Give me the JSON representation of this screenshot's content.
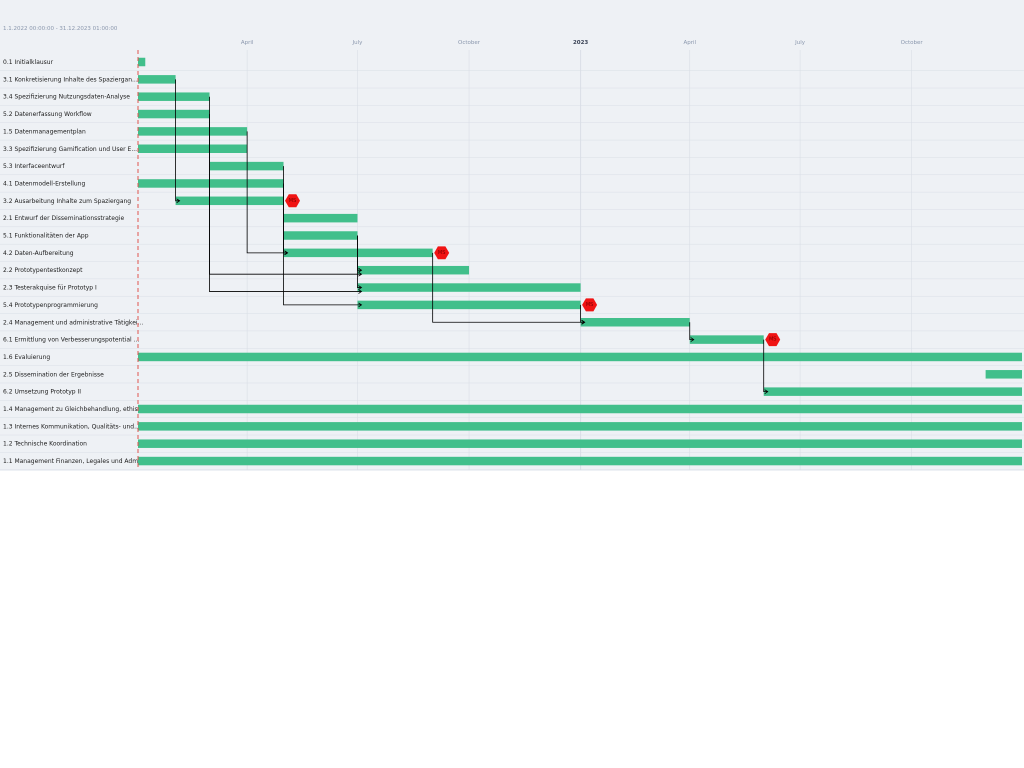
{
  "date_range": "1.1.2022 00:00:00 - 31.12.2023 01:00:00",
  "colors": {
    "bar": "#41bf8b",
    "milestone": "#f01414",
    "today_line": "#e0554f",
    "grid": "#d9dee6",
    "connector": "#000000",
    "panel_bg": "#eef1f5"
  },
  "chart_data": {
    "type": "gantt",
    "x_range": [
      "2022-01-01",
      "2023-12-31"
    ],
    "ticks": [
      {
        "date": "2022-04-01",
        "label": "April",
        "major": false
      },
      {
        "date": "2022-07-01",
        "label": "July",
        "major": false
      },
      {
        "date": "2022-10-01",
        "label": "October",
        "major": false
      },
      {
        "date": "2023-01-01",
        "label": "2023",
        "major": true
      },
      {
        "date": "2023-04-01",
        "label": "April",
        "major": false
      },
      {
        "date": "2023-07-01",
        "label": "July",
        "major": false
      },
      {
        "date": "2023-10-01",
        "label": "October",
        "major": false
      }
    ],
    "today": "2022-01-01",
    "tasks": [
      {
        "label": "0.1 Initialklausur",
        "start": "2022-01-01",
        "end": "2022-01-07",
        "milestone": false
      },
      {
        "label": "3.1 Konkretisierung Inhalte des Spaziergan...",
        "start": "2022-01-01",
        "end": "2022-02-01",
        "milestone": false
      },
      {
        "label": "3.4 Spezifizierung Nutzungsdaten-Analyse",
        "start": "2022-01-01",
        "end": "2022-03-01",
        "milestone": false
      },
      {
        "label": "5.2 Datenerfassung Workflow",
        "start": "2022-01-01",
        "end": "2022-03-01",
        "milestone": false
      },
      {
        "label": "1.5 Datenmanagementplan",
        "start": "2022-01-01",
        "end": "2022-04-01",
        "milestone": false
      },
      {
        "label": "3.3 Spezifizierung Gamification und User E...",
        "start": "2022-01-01",
        "end": "2022-04-01",
        "milestone": false
      },
      {
        "label": "5.3 Interfaceentwurf",
        "start": "2022-03-01",
        "end": "2022-05-01",
        "milestone": false
      },
      {
        "label": "4.1 Datenmodell-Erstellung",
        "start": "2022-01-01",
        "end": "2022-05-01",
        "milestone": false
      },
      {
        "label": "3.2 Ausarbeitung Inhalte zum Spaziergang",
        "start": "2022-02-01",
        "end": "2022-05-01",
        "milestone": true,
        "ms_label": "MS"
      },
      {
        "label": "2.1 Entwurf der Disseminationsstrategie",
        "start": "2022-05-01",
        "end": "2022-07-01",
        "milestone": false
      },
      {
        "label": "5.1 Funktionalitäten der App",
        "start": "2022-05-01",
        "end": "2022-07-01",
        "milestone": false
      },
      {
        "label": "4.2 Daten-Aufbereitung",
        "start": "2022-05-01",
        "end": "2022-09-01",
        "milestone": true,
        "ms_label": "MS"
      },
      {
        "label": "2.2 Prototypentestkonzept",
        "start": "2022-07-01",
        "end": "2022-10-01",
        "milestone": false
      },
      {
        "label": "2.3 Testerakquise für Prototyp I",
        "start": "2022-07-01",
        "end": "2023-01-01",
        "milestone": false
      },
      {
        "label": "5.4 Prototypenprogrammierung",
        "start": "2022-07-01",
        "end": "2023-01-01",
        "milestone": true,
        "ms_label": "MS"
      },
      {
        "label": "2.4 Management und administrative Tätigkei...",
        "start": "2023-01-01",
        "end": "2023-04-01",
        "milestone": false
      },
      {
        "label": "6.1 Ermittlung von Verbesserungspotential ...",
        "start": "2023-04-01",
        "end": "2023-06-01",
        "milestone": true,
        "ms_label": "MS"
      },
      {
        "label": "1.6 Evaluierung",
        "start": "2022-01-01",
        "end": "2023-12-31",
        "milestone": false
      },
      {
        "label": "2.5 Dissemination der Ergebnisse",
        "start": "2023-12-01",
        "end": "2023-12-31",
        "milestone": false
      },
      {
        "label": "6.2 Umsetzung Prototyp II",
        "start": "2023-06-01",
        "end": "2023-12-31",
        "milestone": false
      },
      {
        "label": "1.4 Management zu Gleichbehandlung, ethisc...",
        "start": "2022-01-01",
        "end": "2023-12-31",
        "milestone": false
      },
      {
        "label": "1.3 Internes Kommunikation, Qualitäts- und...",
        "start": "2022-01-01",
        "end": "2023-12-31",
        "milestone": false
      },
      {
        "label": "1.2 Technische Koordination",
        "start": "2022-01-01",
        "end": "2023-12-31",
        "milestone": false
      },
      {
        "label": "1.1 Management Finanzen, Legales und Admin...",
        "start": "2022-01-01",
        "end": "2023-12-31",
        "milestone": false
      }
    ],
    "dependencies": [
      {
        "from": 1,
        "to": 8,
        "drop_to": "row"
      },
      {
        "from": 2,
        "to": 12,
        "drop_to": "below"
      },
      {
        "from": 3,
        "to": 13,
        "drop_to": "below"
      },
      {
        "from": 4,
        "to": 11,
        "drop_to": "row",
        "arrow_at": "2022-05-01"
      },
      {
        "from": 6,
        "to": 11,
        "drop_to": "row",
        "arrow_at": "2022-05-01"
      },
      {
        "from": 7,
        "to": 14,
        "drop_to": "row"
      },
      {
        "from": 10,
        "to": 12,
        "drop_to": "row"
      },
      {
        "from": 10,
        "to": 13,
        "drop_to": "row"
      },
      {
        "from": 11,
        "to": 15,
        "drop_to": "row"
      },
      {
        "from": 14,
        "to": 15,
        "drop_to": "row"
      },
      {
        "from": 15,
        "to": 16,
        "drop_to": "row"
      },
      {
        "from": 16,
        "to": 19,
        "drop_to": "row"
      }
    ]
  }
}
